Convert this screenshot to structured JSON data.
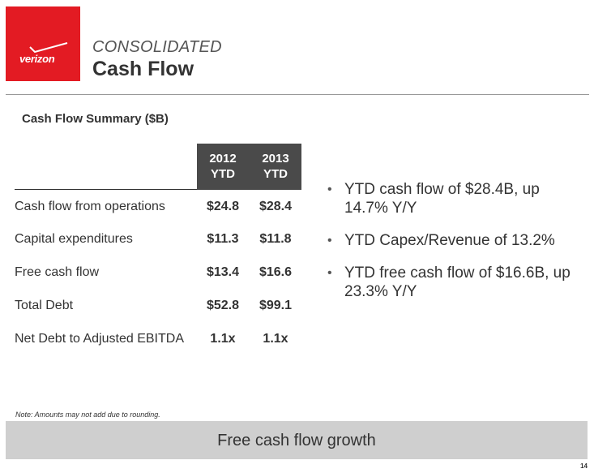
{
  "header": {
    "logo_text": "verizon",
    "subtitle": "CONSOLIDATED",
    "title": "Cash Flow"
  },
  "summary": {
    "title": "Cash Flow Summary ($B)",
    "columns": [
      {
        "line1": "2012",
        "line2": "YTD"
      },
      {
        "line1": "2013",
        "line2": "YTD"
      }
    ],
    "rows": [
      {
        "label": "Cash flow from operations",
        "v2012": "$24.8",
        "v2013": "$28.4"
      },
      {
        "label": "Capital expenditures",
        "v2012": "$11.3",
        "v2013": "$11.8"
      },
      {
        "label": "Free cash flow",
        "v2012": "$13.4",
        "v2013": "$16.6"
      },
      {
        "label": "Total Debt",
        "v2012": "$52.8",
        "v2013": "$99.1"
      },
      {
        "label": "Net Debt to Adjusted EBITDA",
        "v2012": "1.1x",
        "v2013": "1.1x"
      }
    ]
  },
  "bullets": [
    "YTD cash flow of $28.4B, up 14.7% Y/Y",
    "YTD Capex/Revenue of 13.2%",
    "YTD free cash flow of $16.6B, up 23.3% Y/Y"
  ],
  "bullet_symbol": "•",
  "note": "Note:  Amounts may not add due to rounding.",
  "banner": "Free cash flow growth",
  "page_number": "14",
  "colors": {
    "brand_red": "#e31b23",
    "header_cell": "#4a4a4a",
    "banner": "#cfcfcf"
  }
}
